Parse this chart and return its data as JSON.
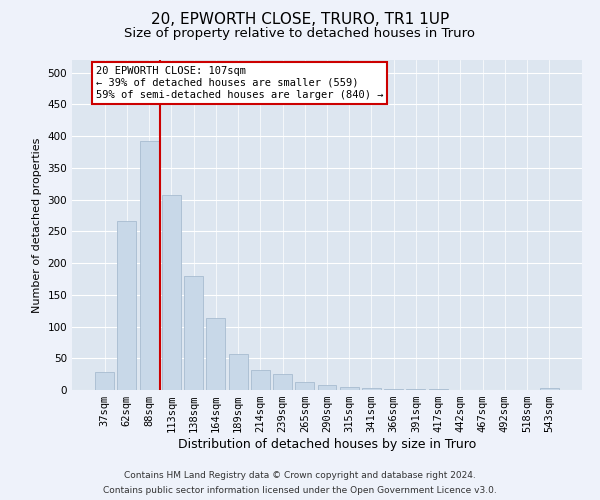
{
  "title1": "20, EPWORTH CLOSE, TRURO, TR1 1UP",
  "title2": "Size of property relative to detached houses in Truro",
  "xlabel": "Distribution of detached houses by size in Truro",
  "ylabel": "Number of detached properties",
  "categories": [
    "37sqm",
    "62sqm",
    "88sqm",
    "113sqm",
    "138sqm",
    "164sqm",
    "189sqm",
    "214sqm",
    "239sqm",
    "265sqm",
    "290sqm",
    "315sqm",
    "341sqm",
    "366sqm",
    "391sqm",
    "417sqm",
    "442sqm",
    "467sqm",
    "492sqm",
    "518sqm",
    "543sqm"
  ],
  "values": [
    28,
    267,
    393,
    308,
    179,
    114,
    57,
    32,
    25,
    13,
    8,
    5,
    3,
    2,
    1,
    1,
    0,
    0,
    0,
    0,
    3
  ],
  "bar_color": "#c8d8e8",
  "bar_edge_color": "#a8bcd0",
  "vline_x_idx": 2,
  "vline_color": "#cc0000",
  "annotation_text": "20 EPWORTH CLOSE: 107sqm\n← 39% of detached houses are smaller (559)\n59% of semi-detached houses are larger (840) →",
  "annotation_box_color": "#ffffff",
  "annotation_box_edge_color": "#cc0000",
  "footnote1": "Contains HM Land Registry data © Crown copyright and database right 2024.",
  "footnote2": "Contains public sector information licensed under the Open Government Licence v3.0.",
  "fig_facecolor": "#eef2fa",
  "axes_facecolor": "#dde6f0",
  "grid_color": "#ffffff",
  "ylim": [
    0,
    520
  ],
  "yticks": [
    0,
    50,
    100,
    150,
    200,
    250,
    300,
    350,
    400,
    450,
    500
  ],
  "title1_fontsize": 11,
  "title2_fontsize": 9.5,
  "xlabel_fontsize": 9,
  "ylabel_fontsize": 8,
  "tick_fontsize": 7.5,
  "annotation_fontsize": 7.5,
  "footnote_fontsize": 6.5
}
